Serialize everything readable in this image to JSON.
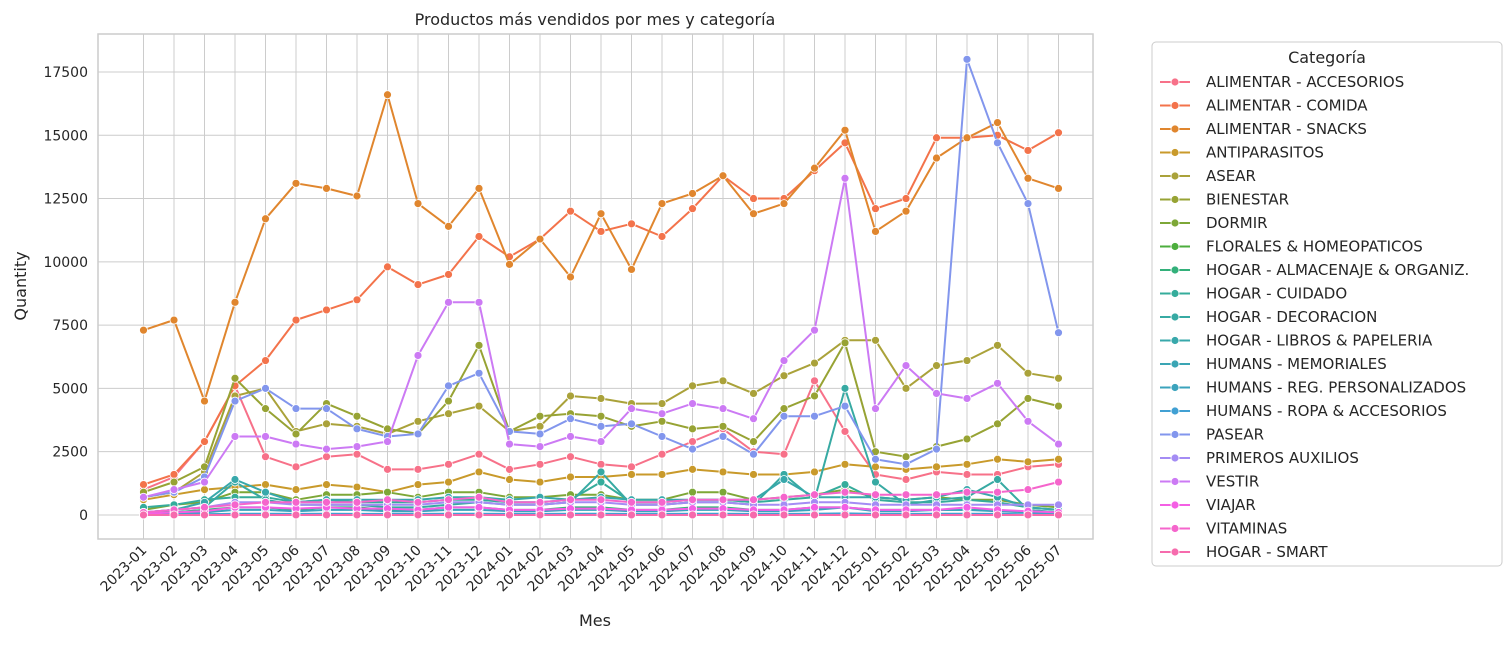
{
  "chart_data": {
    "type": "line",
    "title": "Productos más vendidos por mes y categoría",
    "xlabel": "Mes",
    "ylabel": "Quantity",
    "ylim": [
      -950,
      19000
    ],
    "yticks": [
      0,
      2500,
      5000,
      7500,
      10000,
      12500,
      15000,
      17500
    ],
    "grid": true,
    "legend_title": "Categoría",
    "legend_position": "outside-right",
    "categories": [
      "2023-01",
      "2023-02",
      "2023-03",
      "2023-04",
      "2023-05",
      "2023-06",
      "2023-07",
      "2023-08",
      "2023-09",
      "2023-10",
      "2023-11",
      "2023-12",
      "2024-01",
      "2024-02",
      "2024-03",
      "2024-04",
      "2024-05",
      "2024-06",
      "2024-07",
      "2024-08",
      "2024-09",
      "2024-10",
      "2024-11",
      "2024-12",
      "2025-01",
      "2025-02",
      "2025-03",
      "2025-04",
      "2025-05",
      "2025-06",
      "2025-07"
    ],
    "series": [
      {
        "name": "ALIMENTAR - ACCESORIOS",
        "color": "#f77189",
        "values": [
          1000,
          1500,
          2900,
          5100,
          2300,
          1900,
          2300,
          2400,
          1800,
          1800,
          2000,
          2400,
          1800,
          2000,
          2300,
          2000,
          1900,
          2400,
          2900,
          3400,
          2500,
          2400,
          5300,
          3300,
          1600,
          1400,
          1700,
          1600,
          1600,
          1900,
          2000
        ]
      },
      {
        "name": "ALIMENTAR - COMIDA",
        "color": "#f3734b",
        "values": [
          1200,
          1600,
          2900,
          5100,
          6100,
          7700,
          8100,
          8500,
          9800,
          9100,
          9500,
          11000,
          10200,
          10900,
          12000,
          11200,
          11500,
          11000,
          12100,
          13400,
          12500,
          12500,
          13600,
          14700,
          12100,
          12500,
          14900,
          14900,
          15000,
          14400,
          15100
        ]
      },
      {
        "name": "ALIMENTAR - SNACKS",
        "color": "#e0862e",
        "values": [
          7300,
          7700,
          4500,
          8400,
          11700,
          13100,
          12900,
          12600,
          16600,
          12300,
          11400,
          12900,
          9900,
          10900,
          9400,
          11900,
          9700,
          12300,
          12700,
          13400,
          11900,
          12300,
          13700,
          15200,
          11200,
          12000,
          14100,
          14900,
          15500,
          13300,
          12900
        ]
      },
      {
        "name": "ANTIPARASITOS",
        "color": "#c99a2b",
        "values": [
          600,
          800,
          1000,
          1100,
          1200,
          1000,
          1200,
          1100,
          900,
          1200,
          1300,
          1700,
          1400,
          1300,
          1500,
          1500,
          1600,
          1600,
          1800,
          1700,
          1600,
          1600,
          1700,
          2000,
          1900,
          1800,
          1900,
          2000,
          2200,
          2100,
          2200
        ]
      },
      {
        "name": "ASEAR",
        "color": "#aaa23a",
        "values": [
          700,
          900,
          1700,
          4700,
          5000,
          3300,
          3600,
          3500,
          3200,
          3700,
          4000,
          4300,
          3300,
          3500,
          4700,
          4600,
          4400,
          4400,
          5100,
          5300,
          4800,
          5500,
          6000,
          6900,
          6900,
          5000,
          5900,
          6100,
          6700,
          5600,
          5400
        ]
      },
      {
        "name": "BIENESTAR",
        "color": "#97a334",
        "values": [
          900,
          1300,
          1900,
          5400,
          4200,
          3200,
          4400,
          3900,
          3400,
          3200,
          4500,
          6700,
          3300,
          3900,
          4000,
          3900,
          3500,
          3700,
          3400,
          3500,
          2900,
          4200,
          4700,
          6800,
          2500,
          2300,
          2700,
          3000,
          3600,
          4600,
          4300
        ]
      },
      {
        "name": "DORMIR",
        "color": "#7da737",
        "values": [
          200,
          400,
          500,
          900,
          900,
          600,
          800,
          800,
          900,
          700,
          900,
          900,
          700,
          700,
          800,
          800,
          600,
          600,
          900,
          900,
          600,
          700,
          800,
          1000,
          700,
          600,
          700,
          600,
          600,
          400,
          300
        ]
      },
      {
        "name": "FLORALES & HOMEOPATICOS",
        "color": "#4cae3d",
        "values": [
          0,
          10,
          20,
          30,
          30,
          20,
          30,
          30,
          30,
          20,
          30,
          30,
          20,
          20,
          30,
          30,
          20,
          20,
          30,
          30,
          20,
          20,
          30,
          30,
          20,
          20,
          30,
          20,
          20,
          10,
          10
        ]
      },
      {
        "name": "HOGAR - ALMACENAJE & ORGANIZ.",
        "color": "#33b07a",
        "values": [
          100,
          100,
          200,
          300,
          300,
          200,
          300,
          300,
          200,
          200,
          300,
          300,
          200,
          200,
          300,
          300,
          200,
          200,
          300,
          300,
          200,
          200,
          300,
          300,
          200,
          200,
          200,
          200,
          200,
          100,
          100
        ]
      },
      {
        "name": "HOGAR - CUIDADO",
        "color": "#35ac9b",
        "values": [
          300,
          400,
          600,
          700,
          700,
          500,
          600,
          500,
          500,
          500,
          600,
          600,
          500,
          500,
          600,
          1300,
          500,
          500,
          600,
          600,
          500,
          600,
          700,
          1200,
          600,
          500,
          500,
          600,
          500,
          300,
          200
        ]
      },
      {
        "name": "HOGAR - DECORACION",
        "color": "#37aaa3",
        "values": [
          100,
          200,
          300,
          1300,
          600,
          400,
          400,
          400,
          300,
          300,
          400,
          500,
          400,
          400,
          500,
          1700,
          400,
          400,
          500,
          500,
          400,
          1600,
          600,
          5000,
          1300,
          400,
          600,
          700,
          1400,
          200,
          100
        ]
      },
      {
        "name": "HOGAR - LIBROS & PAPELERIA",
        "color": "#38a8ab",
        "values": [
          100,
          200,
          500,
          1400,
          900,
          500,
          600,
          600,
          600,
          600,
          700,
          700,
          600,
          700,
          600,
          700,
          600,
          600,
          600,
          600,
          600,
          1400,
          700,
          700,
          700,
          600,
          700,
          1000,
          700,
          300,
          200
        ]
      },
      {
        "name": "HUMANS - MEMORIALES",
        "color": "#3aa5b4",
        "values": [
          0,
          0,
          10,
          20,
          20,
          10,
          10,
          10,
          10,
          10,
          10,
          10,
          10,
          10,
          10,
          10,
          10,
          10,
          10,
          10,
          10,
          10,
          10,
          10,
          10,
          10,
          10,
          10,
          10,
          10,
          10
        ]
      },
      {
        "name": "HUMANS - REG. PERSONALIZADOS",
        "color": "#3ba3bc",
        "values": [
          50,
          80,
          100,
          200,
          200,
          150,
          200,
          200,
          150,
          150,
          200,
          200,
          150,
          150,
          200,
          200,
          150,
          150,
          200,
          200,
          150,
          150,
          200,
          300,
          150,
          150,
          200,
          200,
          150,
          100,
          50
        ]
      },
      {
        "name": "HUMANS - ROPA & ACCESORIOS",
        "color": "#41a0d3",
        "values": [
          10,
          20,
          30,
          50,
          50,
          40,
          50,
          40,
          40,
          40,
          50,
          50,
          40,
          40,
          50,
          50,
          40,
          40,
          50,
          50,
          40,
          40,
          50,
          60,
          40,
          40,
          50,
          50,
          40,
          30,
          20
        ]
      },
      {
        "name": "PASEAR",
        "color": "#8296ed",
        "values": [
          700,
          900,
          1500,
          4500,
          5000,
          4200,
          4200,
          3400,
          3100,
          3200,
          5100,
          5600,
          3300,
          3200,
          3800,
          3500,
          3600,
          3100,
          2600,
          3100,
          2400,
          3900,
          3900,
          4300,
          2200,
          2000,
          2600,
          18000,
          14700,
          12300,
          7200
        ]
      },
      {
        "name": "PRIMEROS AUXILIOS",
        "color": "#a48cf4",
        "values": [
          100,
          200,
          300,
          500,
          500,
          400,
          400,
          400,
          400,
          400,
          500,
          500,
          400,
          400,
          500,
          500,
          400,
          400,
          500,
          500,
          400,
          400,
          500,
          500,
          400,
          400,
          400,
          400,
          400,
          400,
          400
        ]
      },
      {
        "name": "VESTIR",
        "color": "#cc7af4",
        "values": [
          700,
          1000,
          1300,
          3100,
          3100,
          2800,
          2600,
          2700,
          2900,
          6300,
          8400,
          8400,
          2800,
          2700,
          3100,
          2900,
          4200,
          4000,
          4400,
          4200,
          3800,
          6100,
          7300,
          13300,
          4200,
          5900,
          4800,
          4600,
          5200,
          3700,
          2800
        ]
      },
      {
        "name": "VIAJAR",
        "color": "#f45fe4",
        "values": [
          50,
          100,
          150,
          300,
          300,
          250,
          300,
          250,
          250,
          200,
          300,
          300,
          200,
          200,
          250,
          250,
          200,
          200,
          250,
          250,
          200,
          200,
          300,
          300,
          200,
          200,
          200,
          300,
          200,
          150,
          100
        ]
      },
      {
        "name": "VITAMINAS",
        "color": "#f565cc",
        "values": [
          100,
          200,
          300,
          400,
          500,
          500,
          500,
          500,
          600,
          500,
          600,
          700,
          500,
          500,
          600,
          600,
          500,
          500,
          600,
          600,
          600,
          700,
          800,
          900,
          800,
          800,
          800,
          900,
          900,
          1000,
          1300
        ]
      },
      {
        "name": "HOGAR - SMART",
        "color": "#f66bad",
        "values": [
          0,
          0,
          0,
          0,
          0,
          0,
          0,
          0,
          0,
          0,
          0,
          0,
          0,
          0,
          0,
          0,
          0,
          0,
          0,
          0,
          0,
          0,
          0,
          0,
          0,
          0,
          0,
          0,
          0,
          0,
          0
        ]
      }
    ]
  }
}
